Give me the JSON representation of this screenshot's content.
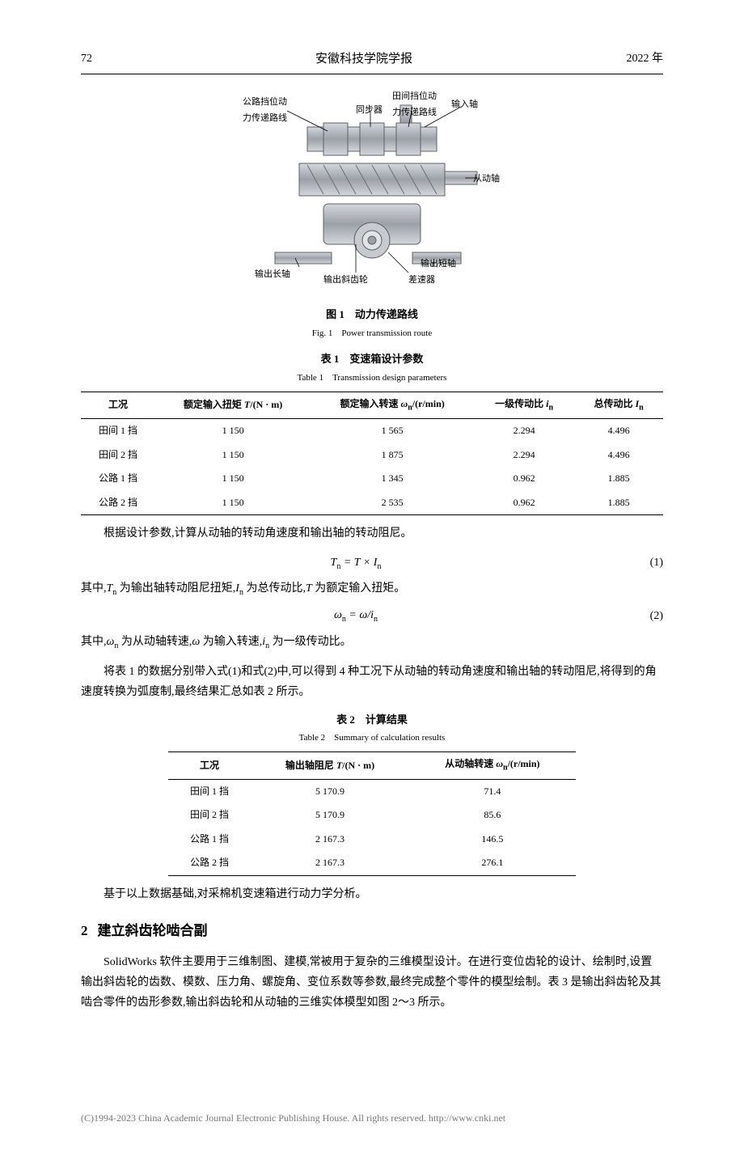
{
  "header": {
    "page": "72",
    "journal": "安徽科技学院学报",
    "year": "2022 年"
  },
  "figure1": {
    "labels": {
      "road_route": "公路挡位动\n力传递路线",
      "field_route": "田间挡位动\n力传递路线",
      "sync": "同步器",
      "input_shaft": "输入轴",
      "driven_shaft": "从动轴",
      "out_long": "输出长轴",
      "out_helical": "输出斜齿轮",
      "out_short": "输出短轴",
      "diff": "差速器"
    },
    "caption_cn": "图 1　动力传递路线",
    "caption_en": "Fig. 1　Power transmission route",
    "colors": {
      "gear_fill": "#b8bcc2",
      "gear_stroke": "#5c6066",
      "leader": "#000000"
    }
  },
  "table1": {
    "caption_cn": "表 1　变速箱设计参数",
    "caption_en": "Table 1　Transmission design parameters",
    "columns": [
      "工况",
      "额定输入扭矩 T/(N · m)",
      "额定输入转速 ωn/(r/min)",
      "一级传动比 in",
      "总传动比 In"
    ],
    "rows": [
      [
        "田间 1 挡",
        "1 150",
        "1 565",
        "2.294",
        "4.496"
      ],
      [
        "田间 2 挡",
        "1 150",
        "1 875",
        "2.294",
        "4.496"
      ],
      [
        "公路 1 挡",
        "1 150",
        "1 345",
        "0.962",
        "1.885"
      ],
      [
        "公路 2 挡",
        "1 150",
        "2 535",
        "0.962",
        "1.885"
      ]
    ]
  },
  "body": {
    "p1": "根据设计参数,计算从动轴的转动角速度和输出轴的转动阻尼。",
    "eq1": "Tn = T × In",
    "eq1_num": "(1)",
    "p2_prefix": "其中,",
    "p2_body": "Tn 为输出轴转动阻尼扭矩,In 为总传动比,T 为额定输入扭矩。",
    "eq2": "ωn = ω/in",
    "eq2_num": "(2)",
    "p3_prefix": "其中,",
    "p3_body": "ωn 为从动轴转速,ω 为输入转速,in 为一级传动比。",
    "p4": "将表 1 的数据分别带入式(1)和式(2)中,可以得到 4 种工况下从动轴的转动角速度和输出轴的转动阻尼,将得到的角速度转换为弧度制,最终结果汇总如表 2 所示。"
  },
  "table2": {
    "caption_cn": "表 2　计算结果",
    "caption_en": "Table 2　Summary of calculation results",
    "columns": [
      "工况",
      "输出轴阻尼 T/(N · m)",
      "从动轴转速 ωn/(r/min)"
    ],
    "rows": [
      [
        "田间 1 挡",
        "5 170.9",
        "71.4"
      ],
      [
        "田间 2 挡",
        "5 170.9",
        "85.6"
      ],
      [
        "公路 1 挡",
        "2 167.3",
        "146.5"
      ],
      [
        "公路 2 挡",
        "2 167.3",
        "276.1"
      ]
    ]
  },
  "body2": {
    "p5": "基于以上数据基础,对采棉机变速箱进行动力学分析。"
  },
  "section2": {
    "num": "2",
    "title": "建立斜齿轮啮合副",
    "p1": "SolidWorks 软件主要用于三维制图、建模,常被用于复杂的三维模型设计。在进行变位齿轮的设计、绘制时,设置输出斜齿轮的齿数、模数、压力角、螺旋角、变位系数等参数,最终完成整个零件的模型绘制。表 3 是输出斜齿轮及其啮合零件的齿形参数,输出斜齿轮和从动轴的三维实体模型如图 2～3 所示。"
  },
  "footer": {
    "text": "(C)1994-2023 China Academic Journal Electronic Publishing House. All rights reserved.    http://www.cnki.net"
  }
}
